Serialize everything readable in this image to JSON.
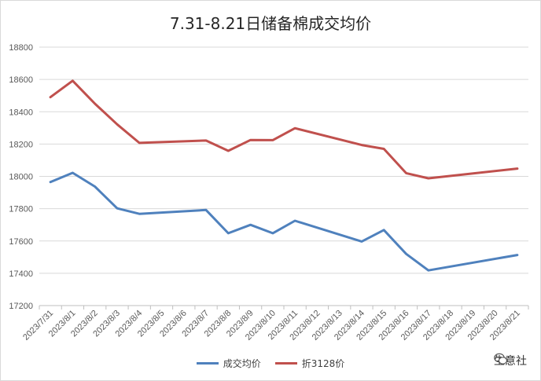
{
  "chart_data": {
    "type": "line",
    "title": "7.31-8.21日储备棉成交均价",
    "xlabel": "",
    "ylabel": "",
    "categories": [
      "2023/7/31",
      "2023/8/1",
      "2023/8/2",
      "2023/8/3",
      "2023/8/4",
      "2023/8/5",
      "2023/8/6",
      "2023/8/7",
      "2023/8/8",
      "2023/8/9",
      "2023/8/10",
      "2023/8/11",
      "2023/8/12",
      "2023/8/13",
      "2023/8/14",
      "2023/8/15",
      "2023/8/16",
      "2023/8/17",
      "2023/8/18",
      "2023/8/19",
      "2023/8/20",
      "2023/8/21"
    ],
    "ylim": [
      17200,
      18800
    ],
    "yticks": [
      17200,
      17400,
      17600,
      17800,
      18000,
      18200,
      18400,
      18600,
      18800
    ],
    "grid": true,
    "legend_position": "bottom",
    "series": [
      {
        "name": "成交均价",
        "color": "#4f81bd",
        "values": [
          17965,
          18022,
          17937,
          17802,
          17768,
          null,
          null,
          17792,
          17648,
          17700,
          17648,
          17725,
          null,
          null,
          17597,
          17668,
          17520,
          17418,
          null,
          null,
          null,
          17513
        ]
      },
      {
        "name": "折3128价",
        "color": "#c0504d",
        "values": [
          18490,
          18592,
          18450,
          18322,
          18207,
          null,
          null,
          18222,
          18158,
          18225,
          18224,
          18298,
          null,
          null,
          18194,
          18170,
          18020,
          17988,
          null,
          null,
          null,
          18048
        ]
      }
    ]
  },
  "watermark": {
    "text": "生意社",
    "icon": "wechat-icon"
  }
}
